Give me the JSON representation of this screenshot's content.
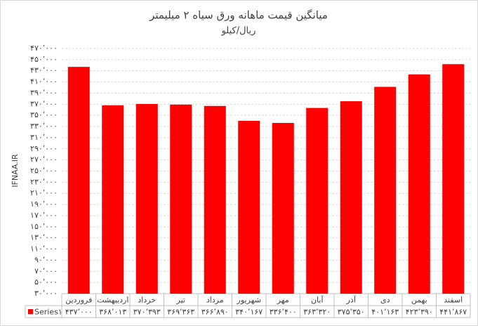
{
  "chart_data": {
    "type": "bar",
    "title": "میانگین قیمت ماهانه ورق سیاه ۲ میلیمتر",
    "subtitle": "ریال/کیلو",
    "y_label": "IFNAA.IR",
    "categories": [
      "فروردین",
      "اردیبهشت",
      "خرداد",
      "تیر",
      "مرداد",
      "شهریور",
      "مهر",
      "آبان",
      "آذر",
      "دی",
      "بهمن",
      "اسفند"
    ],
    "series": [
      {
        "name": "Series۱",
        "color": "#ff0000",
        "values": [
          437000,
          368013,
          370393,
          369363,
          366890,
          340167,
          336400,
          363320,
          375350,
          401163,
          423390,
          441867
        ],
        "value_labels": [
          "۴۳۷٬۰۰۰",
          "۳۶۸٬۰۱۳",
          "۳۷۰٬۳۹۳",
          "۳۶۹٬۳۶۳",
          "۳۶۶٬۸۹۰",
          "۳۴۰٬۱۶۷",
          "۳۳۶٬۴۰۰",
          "۳۶۳٬۳۲۰",
          "۳۷۵٬۳۵۰",
          "۴۰۱٬۱۶۳",
          "۴۲۳٬۳۹۰",
          "۴۴۱٬۸۶۷"
        ]
      }
    ],
    "ylim": [
      30000,
      470000
    ],
    "yticks": [
      {
        "value": 30000,
        "label": "۳۰٬۰۰۰"
      },
      {
        "value": 50000,
        "label": "۵۰٬۰۰۰"
      },
      {
        "value": 70000,
        "label": "۷۰٬۰۰۰"
      },
      {
        "value": 90000,
        "label": "۹۰٬۰۰۰"
      },
      {
        "value": 110000,
        "label": "۱۱۰٬۰۰۰"
      },
      {
        "value": 130000,
        "label": "۱۳۰٬۰۰۰"
      },
      {
        "value": 150000,
        "label": "۱۵۰٬۰۰۰"
      },
      {
        "value": 170000,
        "label": "۱۷۰٬۰۰۰"
      },
      {
        "value": 190000,
        "label": "۱۹۰٬۰۰۰"
      },
      {
        "value": 210000,
        "label": "۲۱۰٬۰۰۰"
      },
      {
        "value": 230000,
        "label": "۲۳۰٬۰۰۰"
      },
      {
        "value": 250000,
        "label": "۲۵۰٬۰۰۰"
      },
      {
        "value": 270000,
        "label": "۲۷۰٬۰۰۰"
      },
      {
        "value": 290000,
        "label": "۲۹۰٬۰۰۰"
      },
      {
        "value": 310000,
        "label": "۳۱۰٬۰۰۰"
      },
      {
        "value": 330000,
        "label": "۳۳۰٬۰۰۰"
      },
      {
        "value": 350000,
        "label": "۳۵۰٬۰۰۰"
      },
      {
        "value": 370000,
        "label": "۳۷۰٬۰۰۰"
      },
      {
        "value": 390000,
        "label": "۳۹۰٬۰۰۰"
      },
      {
        "value": 410000,
        "label": "۴۱۰٬۰۰۰"
      },
      {
        "value": 430000,
        "label": "۴۳۰٬۰۰۰"
      },
      {
        "value": 450000,
        "label": "۴۵۰٬۰۰۰"
      },
      {
        "value": 470000,
        "label": "۴۷۰٬۰۰۰"
      }
    ],
    "grid": true
  }
}
